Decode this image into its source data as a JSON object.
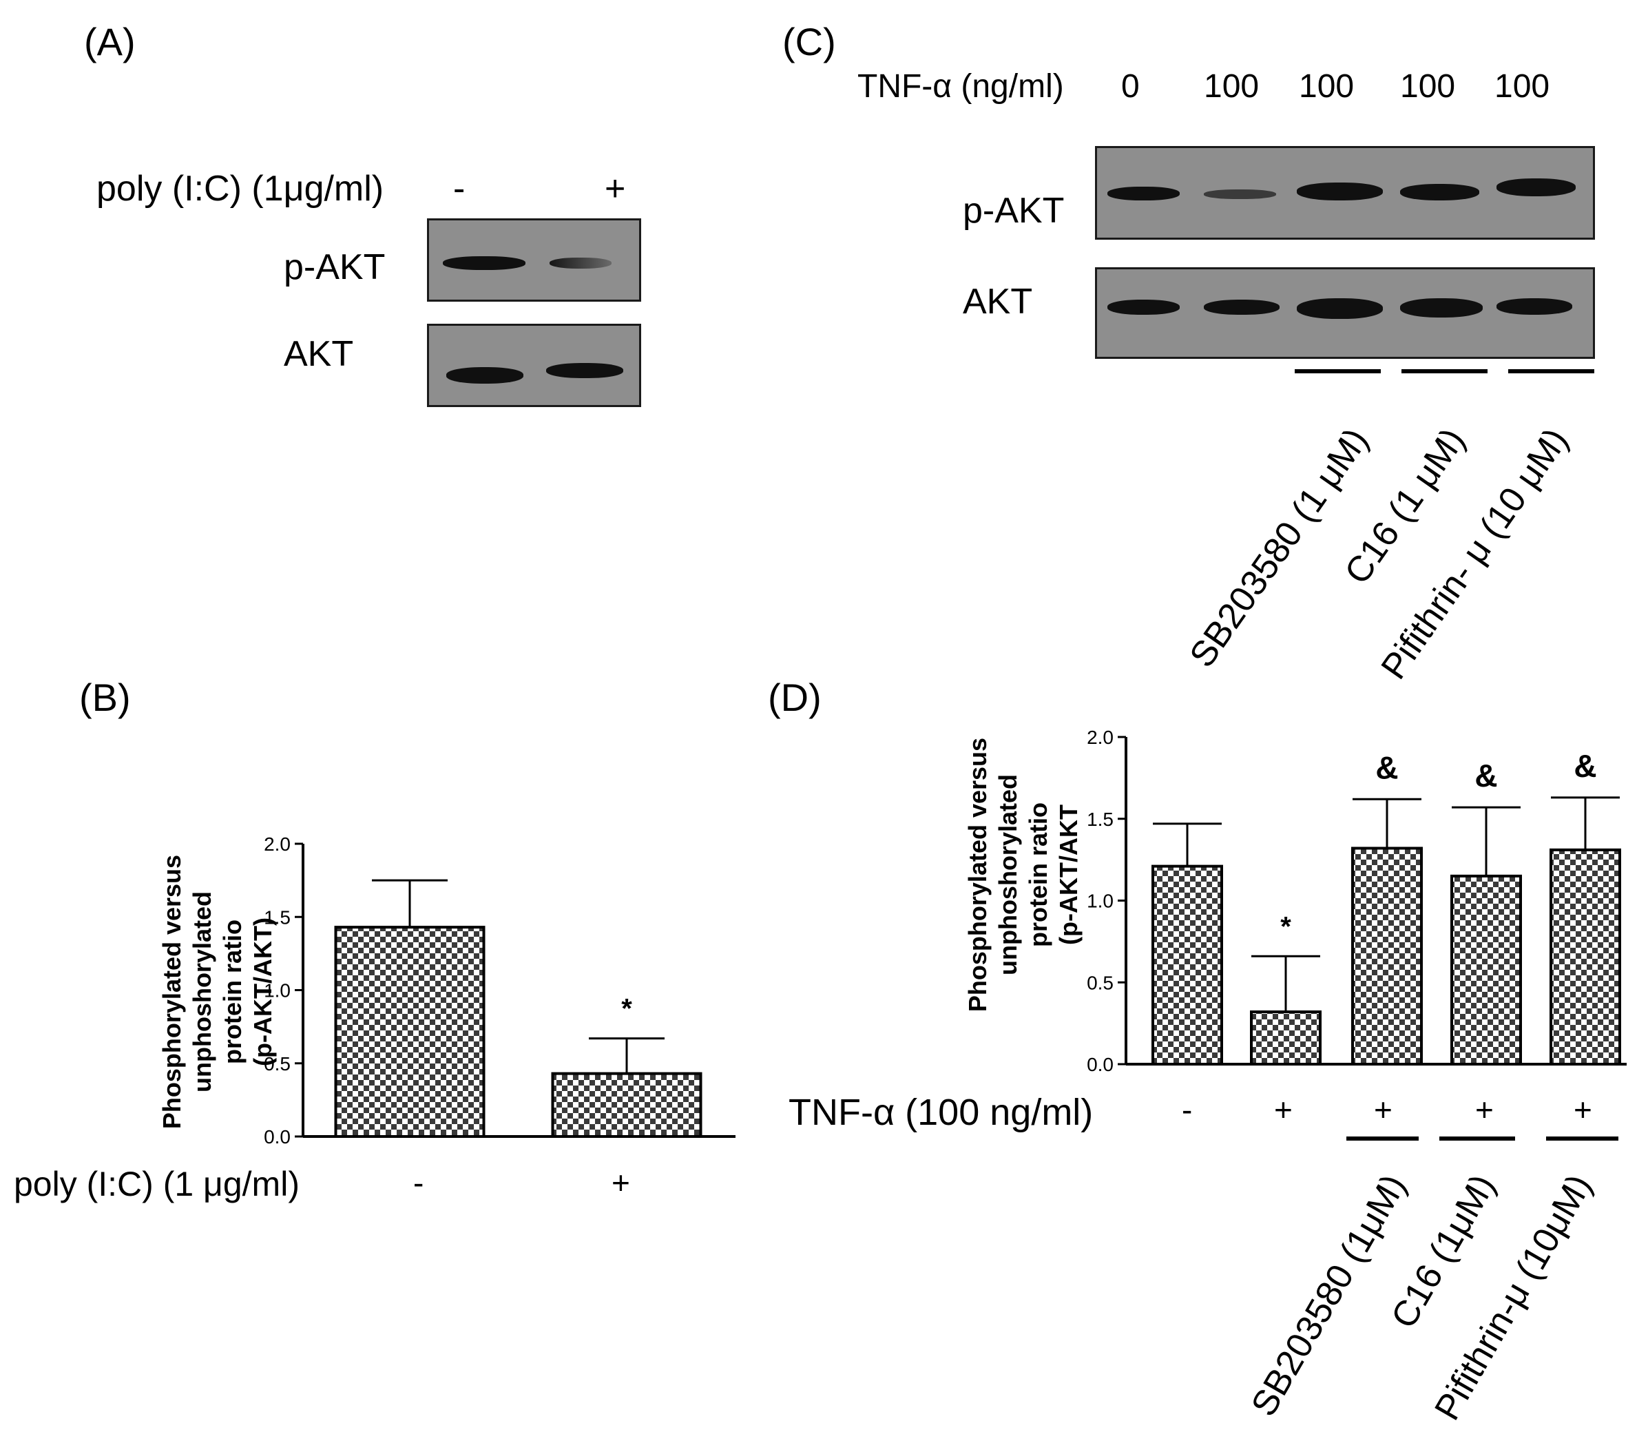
{
  "panel_a": {
    "label": "(A)",
    "treatment_label": "poly (I:C) (1μg/ml)",
    "lanes": [
      "-",
      "+"
    ],
    "rows": [
      "p-AKT",
      "AKT"
    ]
  },
  "panel_c": {
    "label": "(C)",
    "treatment_label": "TNF-α (ng/ml)",
    "doses": [
      "0",
      "100",
      "100",
      "100",
      "100"
    ],
    "rows": [
      "p-AKT",
      "AKT"
    ],
    "inhibitors": [
      "SB203580 (1 μM)",
      "C16 (1 μM)",
      "Pifithrin- μ (10 μM)"
    ]
  },
  "panel_b": {
    "label": "(B)",
    "treatment_label": "poly (I:C) (1 μg/ml)",
    "conditions": [
      "-",
      "+"
    ]
  },
  "panel_d": {
    "label": "(D)",
    "treatment_label": "TNF-α (100 ng/ml)",
    "conditions": [
      "-",
      "+",
      "+",
      "+",
      "+"
    ],
    "inhibitors": [
      "SB203580 (1μM)",
      "C16 (1μM)",
      "Pifithrin-μ (10μM)"
    ]
  },
  "chart_data": [
    {
      "panel": "B",
      "type": "bar",
      "categories": [
        "-",
        "+"
      ],
      "values": [
        1.43,
        0.43
      ],
      "errors": [
        0.32,
        0.24
      ],
      "annotations": [
        "",
        "*"
      ],
      "xlabel": "poly (I:C) (1 μg/ml)",
      "ylabel": "Phosphorylated versus unphoshorylated protein ratio (p-AKT/AKT)",
      "ylim": [
        0,
        2.0
      ],
      "yticks": [
        "0.0",
        "0.5",
        "1.0",
        "1.5",
        "2.0"
      ],
      "fill": "checkered"
    },
    {
      "panel": "D",
      "type": "bar",
      "categories": [
        "-",
        "+",
        "+",
        "+",
        "+"
      ],
      "values": [
        1.21,
        0.32,
        1.32,
        1.15,
        1.31
      ],
      "errors": [
        0.26,
        0.34,
        0.3,
        0.42,
        0.32
      ],
      "annotations": [
        "",
        "*",
        "&",
        "&",
        "&"
      ],
      "xlabel": "TNF-α (100 ng/ml)",
      "ylabel": "Phosphorylated versus unphoshorylated protein ratio (p-AKT/AKT",
      "ylim": [
        0,
        2.0
      ],
      "yticks": [
        "0.0",
        "0.5",
        "1.0",
        "1.5",
        "2.0"
      ],
      "fill": "checkered"
    }
  ]
}
